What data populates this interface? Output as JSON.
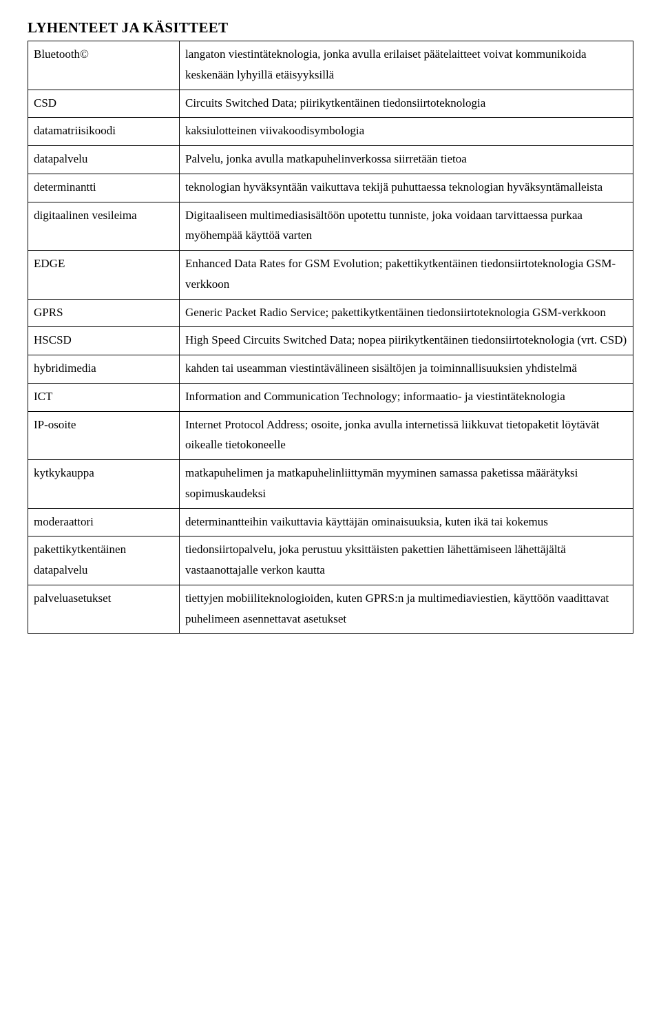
{
  "title": "LYHENTEET JA KÄSITTEET",
  "colWidths": {
    "term": "220px"
  },
  "rows": [
    {
      "term": "Bluetooth©",
      "def": "langaton viestintäteknologia, jonka avulla erilaiset päätelaitteet voivat kommunikoida keskenään lyhyillä etäisyyksillä"
    },
    {
      "term": "CSD",
      "def": "Circuits Switched Data; piirikytkentäinen tiedonsiirtoteknologia"
    },
    {
      "term": "datamatriisikoodi",
      "def": "kaksiulotteinen viivakoodisymbologia"
    },
    {
      "term": "datapalvelu",
      "def": "Palvelu, jonka avulla matkapuhelinverkossa siirretään tietoa"
    },
    {
      "term": "determinantti",
      "def": "teknologian hyväksyntään vaikuttava tekijä puhuttaessa teknologian hyväksyntämalleista"
    },
    {
      "term": "digitaalinen vesileima",
      "def": "Digitaaliseen multimediasisältöön upotettu tunniste, joka voidaan tarvittaessa purkaa myöhempää käyttöä varten"
    },
    {
      "term": "EDGE",
      "def": "Enhanced Data Rates for GSM Evolution; pakettikytkentäinen tiedonsiirtoteknologia GSM-verkkoon"
    },
    {
      "term": "GPRS",
      "def": "Generic Packet Radio Service; pakettikytkentäinen tiedonsiirtoteknologia GSM-verkkoon"
    },
    {
      "term": "HSCSD",
      "def": "High Speed Circuits Switched Data; nopea piirikytkentäinen tiedonsiirtoteknologia (vrt. CSD)"
    },
    {
      "term": "hybridimedia",
      "def": "kahden tai useamman viestintävälineen sisältöjen ja toiminnallisuuksien yhdistelmä"
    },
    {
      "term": "ICT",
      "def": "Information and Communication Technology; informaatio- ja viestintäteknologia"
    },
    {
      "term": "IP-osoite",
      "def": "Internet Protocol Address; osoite, jonka avulla internetissä liikkuvat tietopaketit löytävät oikealle tietokoneelle"
    },
    {
      "term": "kytkykauppa",
      "def": "matkapuhelimen ja matkapuhelinliittymän myyminen samassa paketissa määrätyksi sopimuskaudeksi"
    },
    {
      "term": "moderaattori",
      "def": "determinantteihin vaikuttavia käyttäjän ominaisuuksia, kuten ikä tai kokemus"
    },
    {
      "term": "pakettikytkentäinen datapalvelu",
      "def": "tiedonsiirtopalvelu, joka perustuu yksittäisten pakettien lähettämiseen lähettäjältä vastaanottajalle verkon kautta"
    },
    {
      "term": "palveluasetukset",
      "def": "tiettyjen mobiiliteknologioiden, kuten GPRS:n ja multimediaviestien, käyttöön vaadittavat puhelimeen asennettavat asetukset"
    }
  ]
}
